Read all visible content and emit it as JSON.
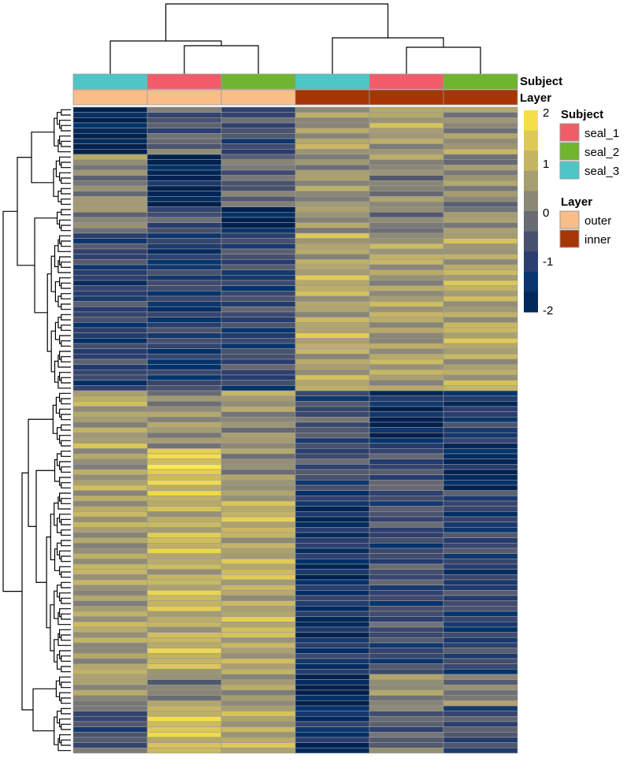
{
  "chart_data": {
    "type": "heatmap",
    "title": "",
    "columns": [
      {
        "subject": "seal_3",
        "layer": "outer"
      },
      {
        "subject": "seal_1",
        "layer": "outer"
      },
      {
        "subject": "seal_2",
        "layer": "outer"
      },
      {
        "subject": "seal_3",
        "layer": "inner"
      },
      {
        "subject": "seal_1",
        "layer": "inner"
      },
      {
        "subject": "seal_2",
        "layer": "inner"
      }
    ],
    "annotation_tracks": [
      "Subject",
      "Layer"
    ],
    "legend": {
      "subject_title": "Subject",
      "subject_entries": [
        {
          "label": "seal_1",
          "color": "#f05d68"
        },
        {
          "label": "seal_2",
          "color": "#6fb52f"
        },
        {
          "label": "seal_3",
          "color": "#4fc6c6"
        }
      ],
      "layer_title": "Layer",
      "layer_entries": [
        {
          "label": "outer",
          "color": "#f9bd88"
        },
        {
          "label": "inner",
          "color": "#a63603"
        }
      ]
    },
    "color_scale": {
      "min": -2,
      "max": 2,
      "ticks": [
        "2",
        "1",
        "0",
        "-1",
        "-2"
      ],
      "tick_values": [
        2,
        1,
        0,
        -1,
        -2
      ],
      "low_color": "#00204d",
      "mid_color": "#7c7b78",
      "high_color": "#ffea46"
    },
    "row_clusters": [
      {
        "rows": 9,
        "values": [
          -2.0,
          -0.4,
          -0.8,
          0.6,
          0.6,
          0.4
        ]
      },
      {
        "rows": 10,
        "values": [
          0.2,
          -1.9,
          -0.2,
          0.3,
          0.2,
          0.2
        ]
      },
      {
        "rows": 5,
        "values": [
          0.3,
          -0.8,
          -1.8,
          0.2,
          0.2,
          0.2
        ]
      },
      {
        "rows": 30,
        "values": [
          -1.0,
          -1.1,
          -0.9,
          0.8,
          0.6,
          0.8
        ]
      },
      {
        "rows": 11,
        "values": [
          0.7,
          0.3,
          0.4,
          -0.7,
          -1.6,
          -1.2
        ]
      },
      {
        "rows": 8,
        "values": [
          0.6,
          1.4,
          0.4,
          -0.8,
          -0.6,
          -1.8
        ]
      },
      {
        "rows": 35,
        "values": [
          0.6,
          1.0,
          0.9,
          -1.4,
          -0.8,
          -1.0
        ]
      },
      {
        "rows": 6,
        "values": [
          0.3,
          0.2,
          0.3,
          -1.9,
          0.2,
          0.2
        ]
      },
      {
        "rows": 9,
        "values": [
          -0.6,
          1.2,
          0.9,
          -1.5,
          -0.3,
          -0.8
        ]
      }
    ]
  }
}
